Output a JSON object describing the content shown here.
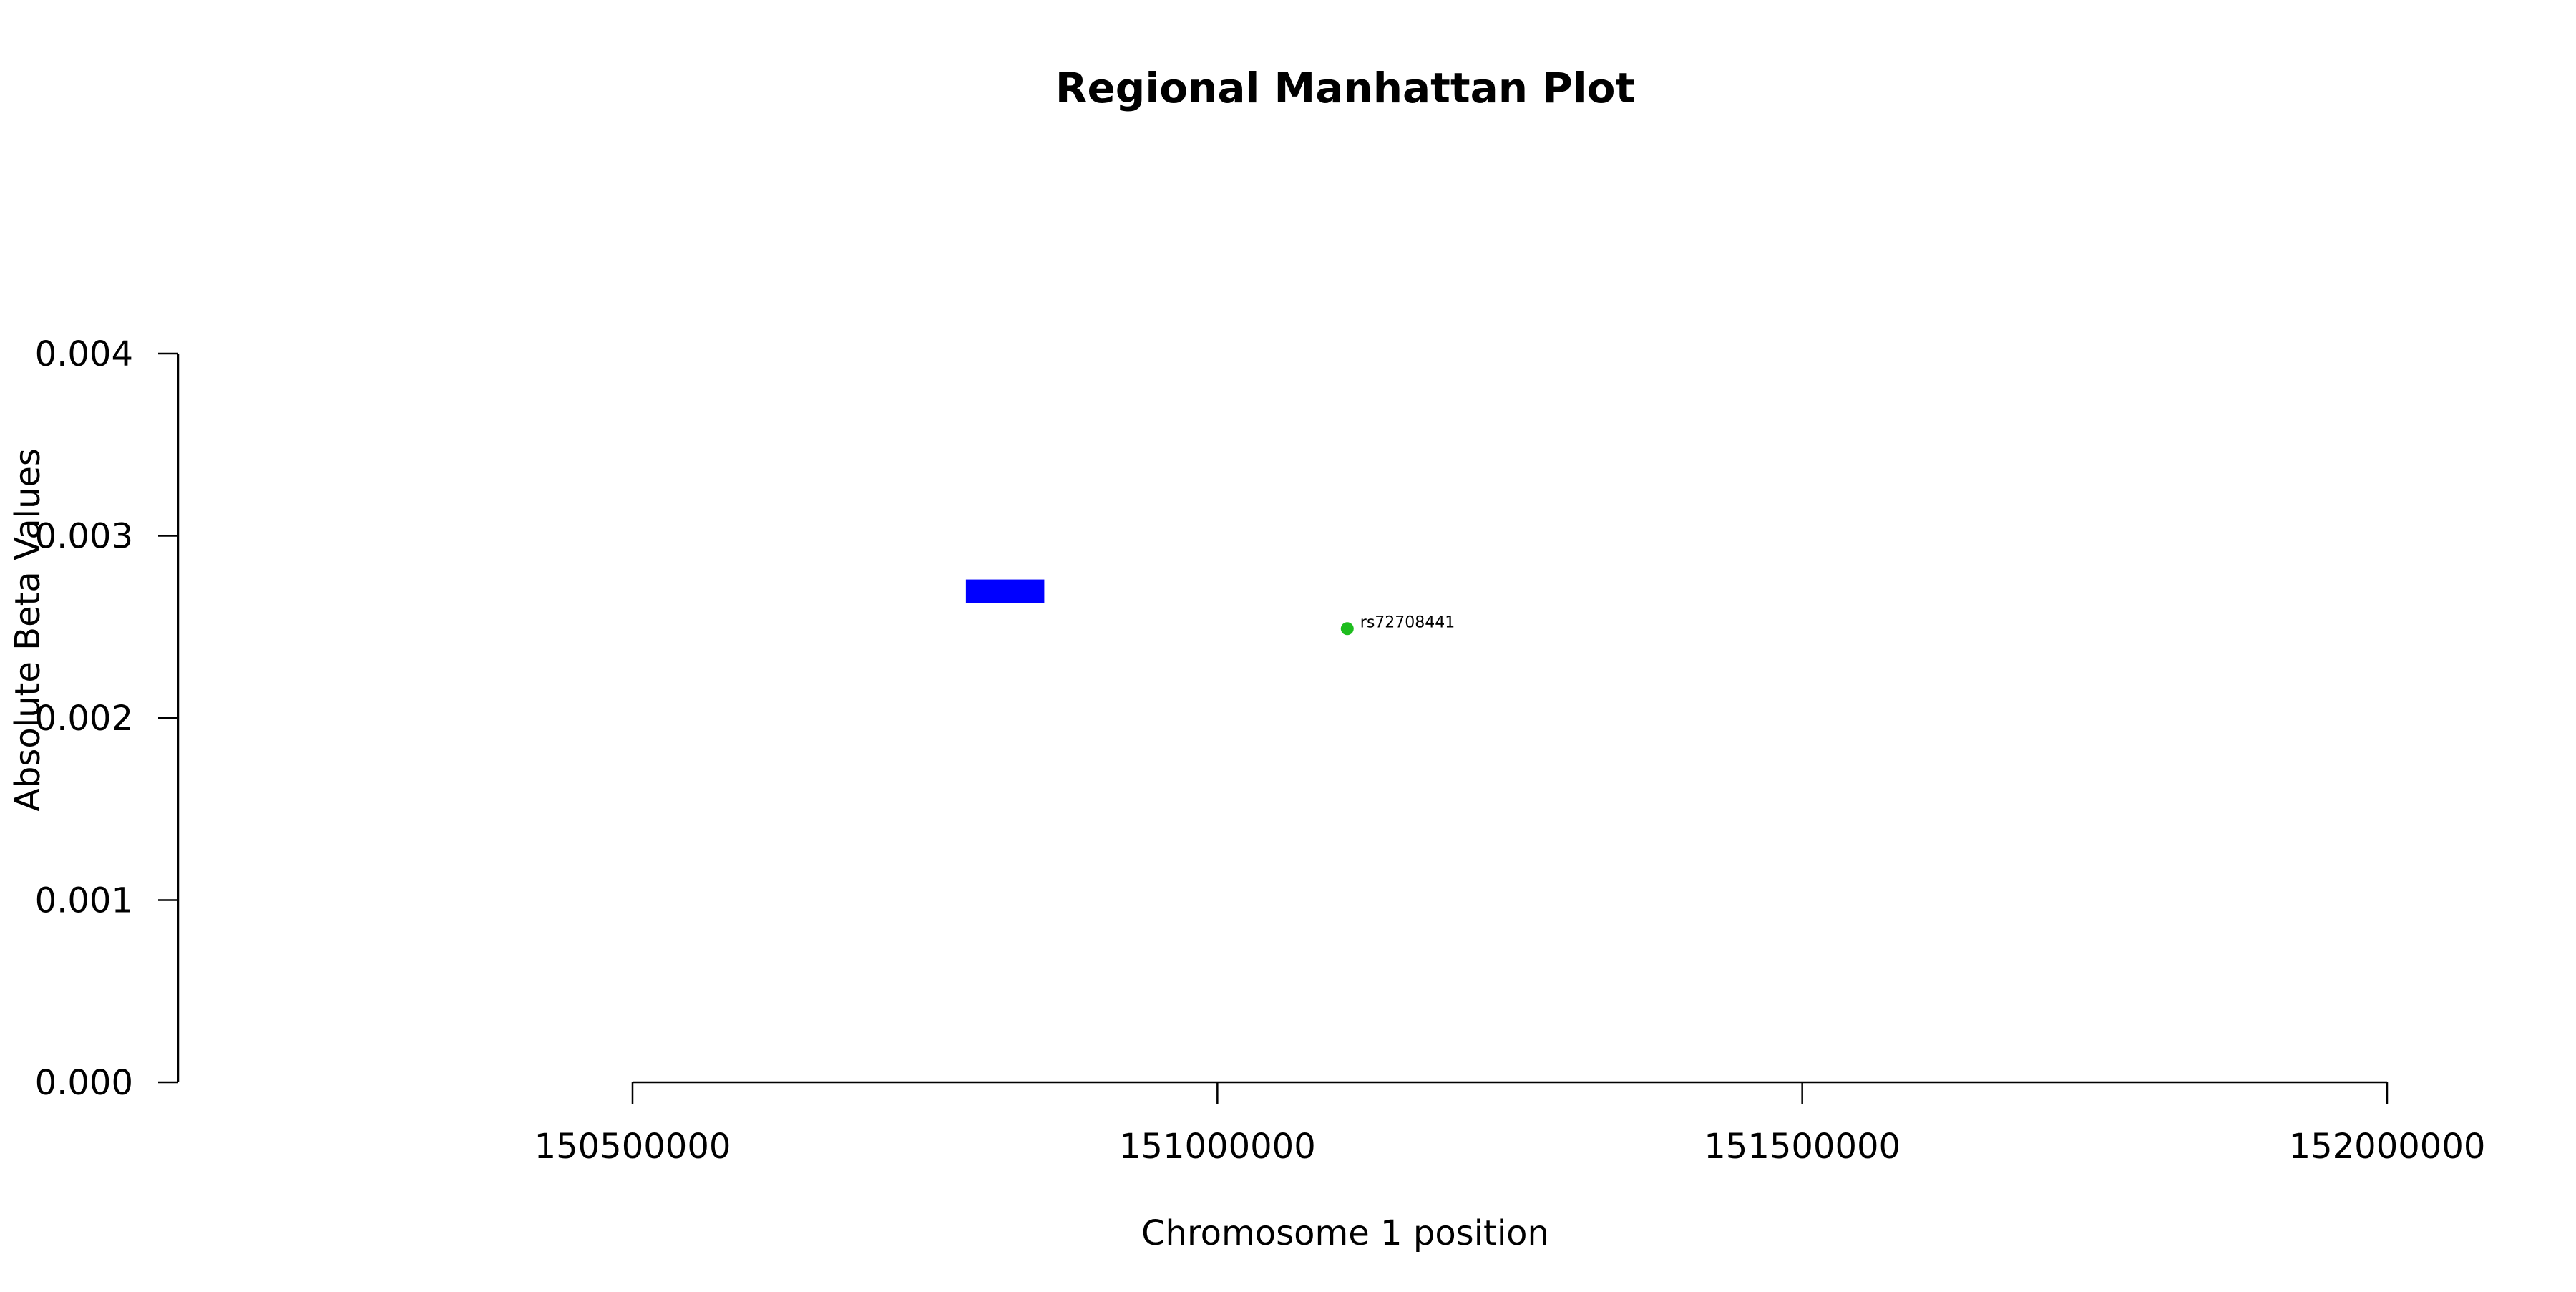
{
  "chart_data": {
    "type": "scatter",
    "title": "Regional Manhattan Plot",
    "xlabel": "Chromosome 1 position",
    "ylabel": "Absolute Beta Values",
    "xlim": [
      150500000,
      152000000
    ],
    "ylim": [
      0,
      0.004
    ],
    "x_ticks": [
      150500000,
      151000000,
      151500000,
      152000000
    ],
    "x_tick_labels": [
      "150500000",
      "151000000",
      "151500000",
      "152000000"
    ],
    "y_ticks": [
      0,
      0.001,
      0.002,
      0.003,
      0.004
    ],
    "y_tick_labels": [
      "0.000",
      "0.001",
      "0.002",
      "0.003",
      "0.004"
    ],
    "grid": false,
    "legend": "none",
    "regions": [
      {
        "x_start": 150785000,
        "x_end": 150852000,
        "y_low": 0.00263,
        "y_high": 0.00276,
        "color": "#0000ff"
      }
    ],
    "points": [
      {
        "label": "rs72708441",
        "x": 151111000,
        "y": 0.00249,
        "color": "#1ebd1e"
      }
    ]
  }
}
